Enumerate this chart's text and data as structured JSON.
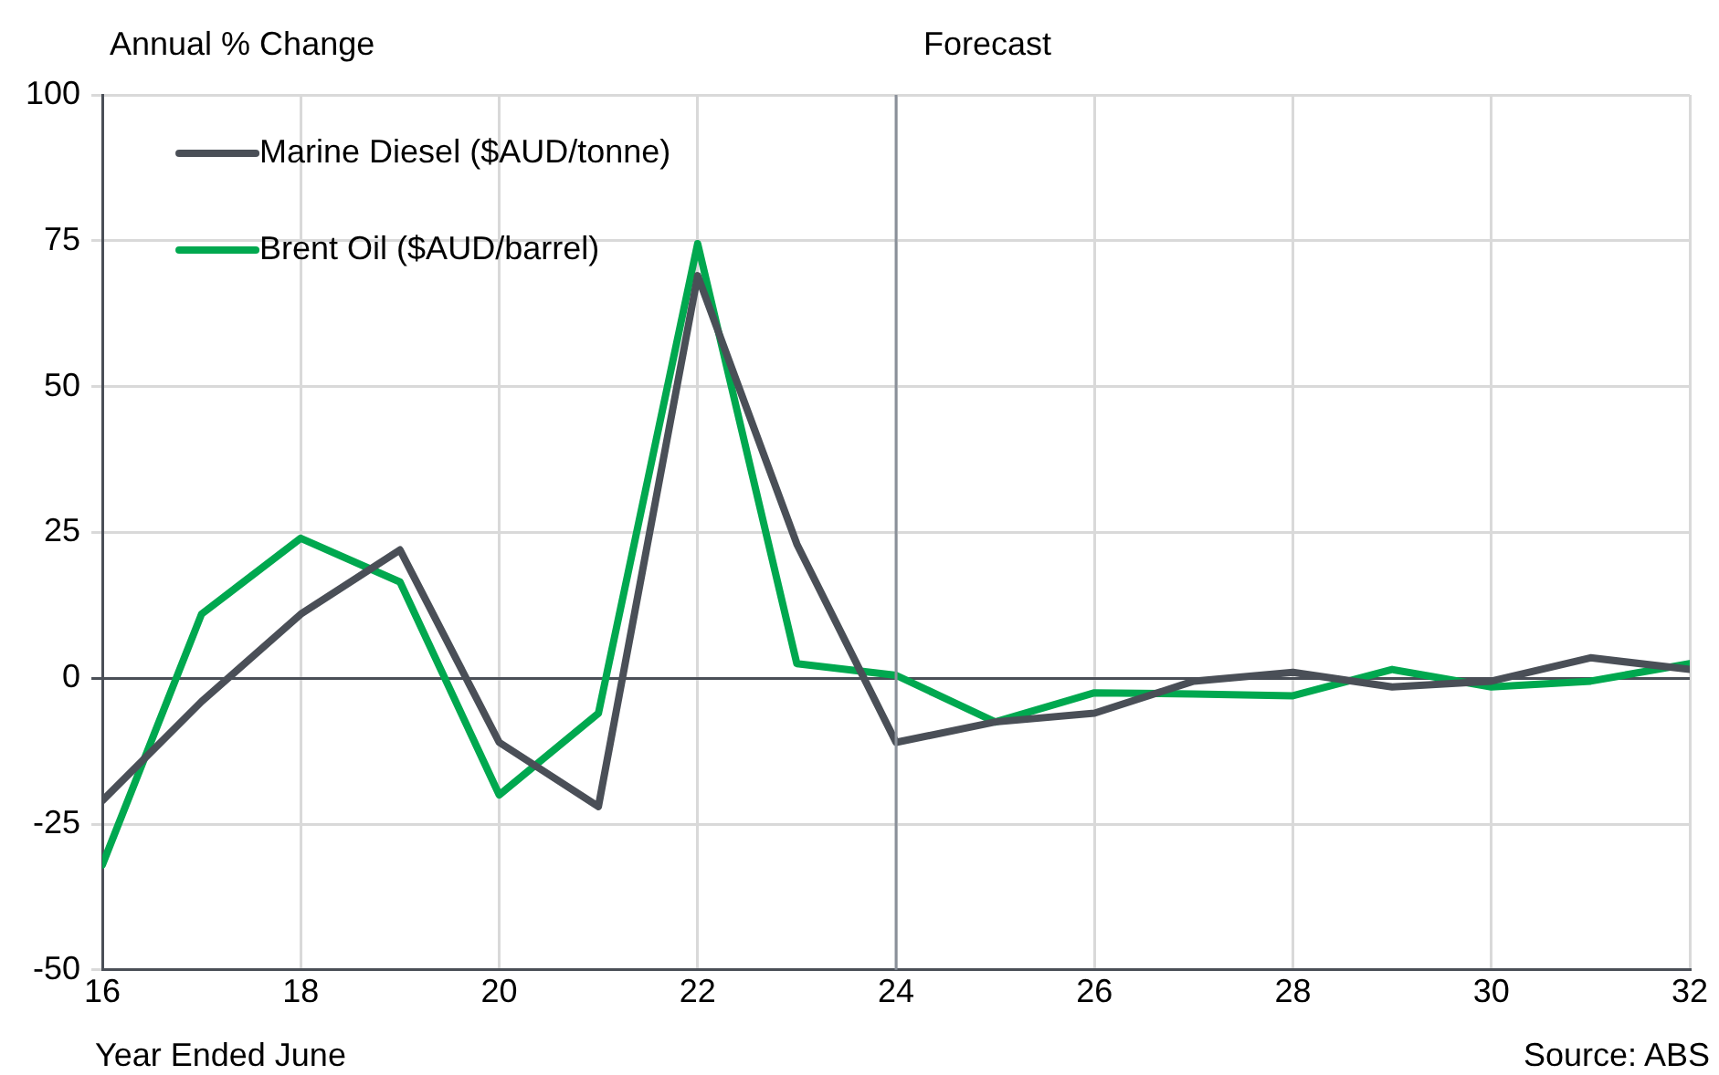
{
  "chart_data": {
    "type": "line",
    "ylabel": "Annual % Change",
    "xlabel": "Year Ended June",
    "x": [
      16,
      17,
      18,
      19,
      20,
      21,
      22,
      23,
      24,
      25,
      26,
      27,
      28,
      29,
      30,
      31,
      32
    ],
    "series": [
      {
        "name": "Marine Diesel ($AUD/tonne)",
        "color": "#4a4f57",
        "values": [
          -21,
          -4,
          11,
          22,
          -11,
          -22,
          69,
          23,
          -11,
          -7.5,
          -6,
          -0.5,
          1,
          -1.5,
          -0.5,
          3.5,
          1.5
        ]
      },
      {
        "name": "Brent Oil ($AUD/barrel)",
        "color": "#00a84f",
        "values": [
          -32,
          11,
          24,
          16.5,
          -20,
          -6,
          74.5,
          2.5,
          0.5,
          -7.5,
          -2.5,
          -2.7,
          -3,
          1.5,
          -1.5,
          -0.5,
          2.5
        ]
      }
    ],
    "xlim": [
      16,
      32
    ],
    "xticks": [
      16,
      18,
      20,
      22,
      24,
      26,
      28,
      30,
      32
    ],
    "ylim": [
      -50,
      100
    ],
    "yticks": [
      -50,
      -25,
      0,
      25,
      50,
      75,
      100
    ],
    "ref_lines": [
      {
        "axis": "x",
        "value": 24,
        "label": "Forecast",
        "color": "#8a9099"
      }
    ],
    "annotations": [
      "Source: ABS"
    ],
    "grid": true,
    "legend": "top left",
    "marker": "none",
    "line_style": "solid"
  }
}
